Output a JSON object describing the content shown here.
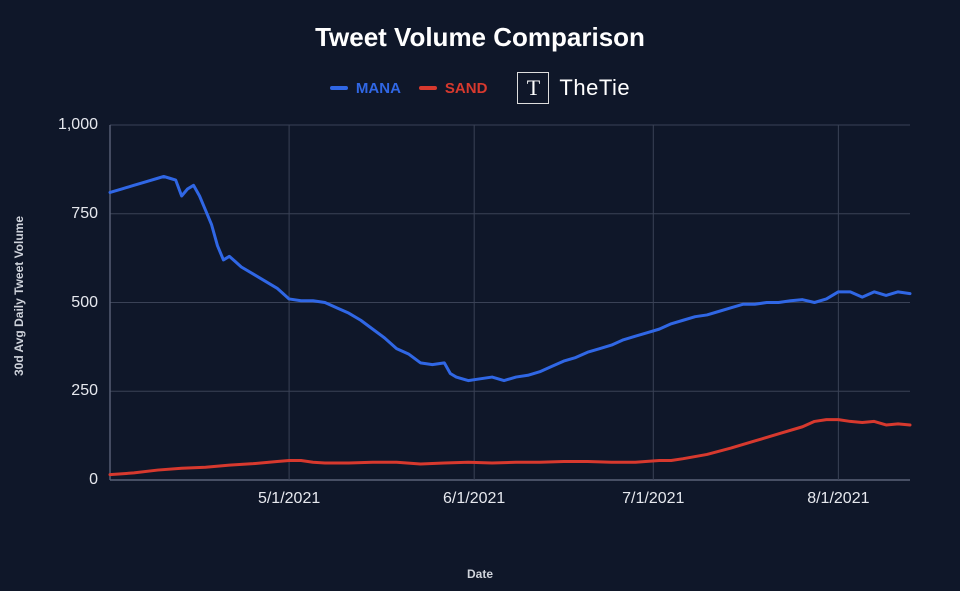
{
  "chart": {
    "type": "line",
    "title": "Tweet Volume Comparison",
    "title_fontsize": 26,
    "title_color": "#ffffff",
    "background_color": "#0f1729",
    "grid_color": "#3a4256",
    "axis_line_color": "#5a6278",
    "yaxis_label": "30d Avg Daily Tweet Volume",
    "xaxis_label": "Date",
    "axis_label_fontsize": 12,
    "axis_label_color": "#cfd3db",
    "tick_label_fontsize": 16,
    "tick_label_color": "#e6e8ee",
    "ylim": [
      0,
      1000
    ],
    "yticks": [
      0,
      250,
      500,
      750,
      1000
    ],
    "ytick_labels": [
      "0",
      "250",
      "500",
      "750",
      "1,000"
    ],
    "xlim": [
      0,
      134
    ],
    "xticks": [
      30,
      61,
      91,
      122
    ],
    "xtick_labels": [
      "5/1/2021",
      "6/1/2021",
      "7/1/2021",
      "8/1/2021"
    ],
    "line_width": 3,
    "legend": {
      "items": [
        {
          "label": "MANA",
          "color": "#3067e5"
        },
        {
          "label": "SAND",
          "color": "#d7392e"
        }
      ]
    },
    "brand": {
      "name": "TheTie",
      "logo_glyph": "T"
    },
    "series": [
      {
        "name": "MANA",
        "color": "#3067e5",
        "data": [
          [
            0,
            810
          ],
          [
            2,
            820
          ],
          [
            4,
            830
          ],
          [
            6,
            840
          ],
          [
            8,
            850
          ],
          [
            9,
            855
          ],
          [
            10,
            850
          ],
          [
            11,
            845
          ],
          [
            12,
            800
          ],
          [
            13,
            820
          ],
          [
            14,
            830
          ],
          [
            15,
            800
          ],
          [
            16,
            760
          ],
          [
            17,
            720
          ],
          [
            18,
            660
          ],
          [
            19,
            620
          ],
          [
            20,
            630
          ],
          [
            21,
            615
          ],
          [
            22,
            600
          ],
          [
            24,
            580
          ],
          [
            26,
            560
          ],
          [
            28,
            540
          ],
          [
            30,
            510
          ],
          [
            32,
            505
          ],
          [
            34,
            505
          ],
          [
            36,
            500
          ],
          [
            38,
            485
          ],
          [
            40,
            470
          ],
          [
            42,
            450
          ],
          [
            44,
            425
          ],
          [
            46,
            400
          ],
          [
            48,
            370
          ],
          [
            50,
            355
          ],
          [
            52,
            330
          ],
          [
            54,
            325
          ],
          [
            56,
            330
          ],
          [
            57,
            300
          ],
          [
            58,
            290
          ],
          [
            60,
            280
          ],
          [
            62,
            285
          ],
          [
            64,
            290
          ],
          [
            66,
            280
          ],
          [
            68,
            290
          ],
          [
            70,
            295
          ],
          [
            72,
            305
          ],
          [
            74,
            320
          ],
          [
            76,
            335
          ],
          [
            78,
            345
          ],
          [
            80,
            360
          ],
          [
            82,
            370
          ],
          [
            84,
            380
          ],
          [
            86,
            395
          ],
          [
            88,
            405
          ],
          [
            90,
            415
          ],
          [
            92,
            425
          ],
          [
            94,
            440
          ],
          [
            96,
            450
          ],
          [
            98,
            460
          ],
          [
            100,
            465
          ],
          [
            102,
            475
          ],
          [
            104,
            485
          ],
          [
            106,
            495
          ],
          [
            108,
            495
          ],
          [
            110,
            500
          ],
          [
            112,
            500
          ],
          [
            114,
            505
          ],
          [
            116,
            508
          ],
          [
            118,
            500
          ],
          [
            120,
            510
          ],
          [
            122,
            530
          ],
          [
            124,
            530
          ],
          [
            126,
            515
          ],
          [
            128,
            530
          ],
          [
            130,
            520
          ],
          [
            132,
            530
          ],
          [
            134,
            525
          ]
        ]
      },
      {
        "name": "SAND",
        "color": "#d7392e",
        "data": [
          [
            0,
            15
          ],
          [
            4,
            20
          ],
          [
            8,
            28
          ],
          [
            12,
            33
          ],
          [
            16,
            36
          ],
          [
            20,
            42
          ],
          [
            24,
            46
          ],
          [
            28,
            52
          ],
          [
            30,
            55
          ],
          [
            32,
            55
          ],
          [
            34,
            50
          ],
          [
            36,
            48
          ],
          [
            40,
            48
          ],
          [
            44,
            50
          ],
          [
            48,
            50
          ],
          [
            52,
            45
          ],
          [
            56,
            48
          ],
          [
            60,
            50
          ],
          [
            64,
            48
          ],
          [
            68,
            50
          ],
          [
            72,
            50
          ],
          [
            76,
            52
          ],
          [
            80,
            52
          ],
          [
            84,
            50
          ],
          [
            88,
            50
          ],
          [
            92,
            55
          ],
          [
            94,
            55
          ],
          [
            96,
            60
          ],
          [
            100,
            72
          ],
          [
            104,
            90
          ],
          [
            108,
            110
          ],
          [
            112,
            130
          ],
          [
            116,
            150
          ],
          [
            118,
            165
          ],
          [
            120,
            170
          ],
          [
            122,
            170
          ],
          [
            124,
            165
          ],
          [
            126,
            162
          ],
          [
            128,
            165
          ],
          [
            130,
            155
          ],
          [
            132,
            158
          ],
          [
            134,
            155
          ]
        ]
      }
    ]
  }
}
